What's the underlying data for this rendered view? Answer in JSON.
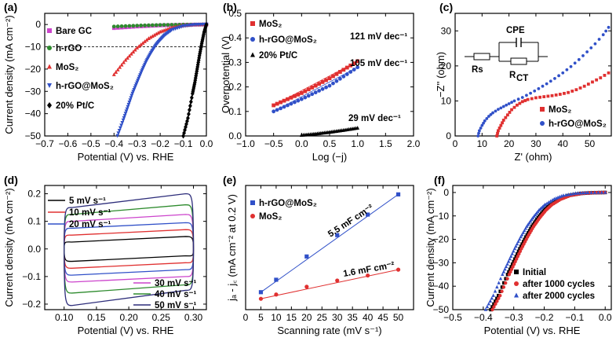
{
  "panel_labels": [
    "(a)",
    "(b)",
    "(c)",
    "(d)",
    "(e)",
    "(f)"
  ],
  "chart_data": [
    {
      "panel": "(a)",
      "type": "line",
      "xlabel": "Potential (V) vs. RHE",
      "ylabel": "Current density (mA cm⁻²)",
      "xlim": [
        -0.7,
        0.0
      ],
      "ylim": [
        -50,
        5
      ],
      "xticks": [
        "-0.7",
        "-0.6",
        "-0.5",
        "-0.4",
        "-0.3",
        "-0.2",
        "-0.1",
        "0.0"
      ],
      "yticks": [
        "-50",
        "-40",
        "-30",
        "-20",
        "-10",
        "0"
      ],
      "reference_line_y": -10,
      "series": [
        {
          "name": "Bare GC",
          "color": "#cc44cc",
          "marker": "square",
          "x": [
            -0.4,
            -0.3,
            -0.2,
            -0.1,
            0.0
          ],
          "y": [
            -1.6,
            -0.9,
            -0.4,
            -0.1,
            0.0
          ]
        },
        {
          "name": "h-rGO",
          "color": "#2e8b2e",
          "marker": "circle",
          "x": [
            -0.4,
            -0.3,
            -0.2,
            -0.1,
            0.0
          ],
          "y": [
            -0.9,
            -0.5,
            -0.2,
            -0.05,
            0.0
          ]
        },
        {
          "name": "MoS₂",
          "color": "#e03030",
          "marker": "triangle",
          "x": [
            -0.4,
            -0.35,
            -0.3,
            -0.25,
            -0.2,
            -0.15,
            -0.1,
            -0.05,
            0.0
          ],
          "y": [
            -22.5,
            -16,
            -10.5,
            -6.3,
            -3.3,
            -1.5,
            -0.5,
            -0.1,
            0.0
          ]
        },
        {
          "name": "h-rGO@MoS₂",
          "color": "#3050c8",
          "marker": "triangle-down",
          "x": [
            -0.385,
            -0.36,
            -0.34,
            -0.32,
            -0.3,
            -0.28,
            -0.26,
            -0.24,
            -0.22,
            -0.2,
            -0.18,
            -0.15,
            -0.1,
            -0.05,
            0.0
          ],
          "y": [
            -50,
            -43,
            -37,
            -31,
            -26,
            -21,
            -16.5,
            -12.8,
            -9.5,
            -7.0,
            -4.8,
            -2.5,
            -0.8,
            -0.2,
            0.0
          ]
        },
        {
          "name": "20% Pt/C",
          "color": "#000000",
          "marker": "diamond",
          "x": [
            -0.1,
            -0.08,
            -0.06,
            -0.05,
            -0.04,
            -0.03,
            -0.02,
            -0.01,
            0.0
          ],
          "y": [
            -50,
            -42,
            -31,
            -26,
            -20,
            -14,
            -8.5,
            -3.5,
            0.0
          ]
        }
      ]
    },
    {
      "panel": "(b)",
      "type": "line",
      "xlabel": "Log (−j)",
      "ylabel": "Overpotential (V)",
      "xlim": [
        -1.0,
        2.0
      ],
      "ylim": [
        0.0,
        0.5
      ],
      "xticks": [
        "-1.0",
        "-0.5",
        "0.0",
        "0.5",
        "1.0",
        "1.5",
        "2.0"
      ],
      "yticks": [
        "0.0",
        "0.1",
        "0.2",
        "0.3",
        "0.4",
        "0.5"
      ],
      "series": [
        {
          "name": "MoS₂",
          "color": "#e03030",
          "marker": "square",
          "x": [
            -0.5,
            0.0,
            0.5,
            1.0
          ],
          "y": [
            0.125,
            0.175,
            0.235,
            0.305
          ]
        },
        {
          "name": "h-rGO@MoS₂",
          "color": "#3050c8",
          "marker": "circle",
          "x": [
            -0.5,
            0.0,
            0.5,
            1.0
          ],
          "y": [
            0.1,
            0.15,
            0.205,
            0.28
          ]
        },
        {
          "name": "20% Pt/C",
          "color": "#000000",
          "marker": "triangle",
          "x": [
            0.0,
            0.25,
            0.5,
            0.75,
            1.0
          ],
          "y": [
            0.003,
            0.008,
            0.015,
            0.023,
            0.032
          ]
        }
      ],
      "annotations": [
        "121 mV dec⁻¹",
        "105 mV dec⁻¹",
        "29 mV dec⁻¹"
      ]
    },
    {
      "panel": "(c)",
      "type": "scatter",
      "xlabel": "Z' (ohm)",
      "ylabel": "−Z'' (ohm)",
      "xlim": [
        0,
        58
      ],
      "ylim": [
        0,
        35
      ],
      "xticks": [
        "0",
        "10",
        "20",
        "30",
        "40",
        "50"
      ],
      "yticks": [
        "0",
        "10",
        "20",
        "30"
      ],
      "series": [
        {
          "name": "MoS₂",
          "color": "#e03030",
          "marker": "square",
          "x": [
            15.5,
            16,
            17,
            18,
            19.5,
            21,
            23,
            25,
            27,
            30,
            33,
            36,
            39,
            42,
            45,
            48,
            51,
            54,
            57
          ],
          "y": [
            0,
            1.5,
            3,
            4.5,
            6,
            7.5,
            8.8,
            9.8,
            10.4,
            10.9,
            11.2,
            11.5,
            11.9,
            12.4,
            13.2,
            14.2,
            15.4,
            16.6,
            18.0
          ]
        },
        {
          "name": "h-rGO@MoS₂",
          "color": "#3050c8",
          "marker": "circle",
          "x": [
            8.5,
            9,
            10,
            11,
            12.5,
            14,
            16,
            18,
            20,
            22,
            25,
            28,
            31,
            34,
            37,
            40,
            43,
            46,
            49,
            52,
            55,
            57
          ],
          "y": [
            0,
            1.5,
            3,
            4.3,
            5.6,
            6.6,
            7.6,
            8.4,
            9.2,
            10.0,
            11.0,
            12.2,
            13.5,
            14.9,
            16.4,
            18.0,
            19.8,
            21.8,
            24.0,
            26.3,
            28.9,
            31.0
          ]
        }
      ],
      "circuit": {
        "cpe": "CPE",
        "rs": "Rs",
        "rct": "R",
        "rct_sub": "CT"
      }
    },
    {
      "panel": "(d)",
      "type": "line",
      "xlabel": "Potential (V) vs. RHE",
      "ylabel": "Current density (mA cm⁻²)",
      "xlim": [
        0.07,
        0.32
      ],
      "ylim": [
        -0.22,
        0.23
      ],
      "xticks": [
        "0.10",
        "0.15",
        "0.20",
        "0.25",
        "0.30"
      ],
      "yticks": [
        "-0.2",
        "-0.1",
        "0.0",
        "0.1",
        "0.2"
      ],
      "series": [
        {
          "name": "5 mV s⁻¹",
          "color": "#000000",
          "top_left": 0.025,
          "top_right": 0.045,
          "bottom_left": -0.045,
          "bottom_right": -0.025
        },
        {
          "name": "10 mV s⁻¹",
          "color": "#e03030",
          "top_left": 0.05,
          "top_right": 0.07,
          "bottom_left": -0.07,
          "bottom_right": -0.05
        },
        {
          "name": "20 mV s⁻¹",
          "color": "#3050c8",
          "top_left": 0.075,
          "top_right": 0.095,
          "bottom_left": -0.095,
          "bottom_right": -0.075
        },
        {
          "name": "30 mV s⁻¹",
          "color": "#cc44cc",
          "top_left": 0.1,
          "top_right": 0.125,
          "bottom_left": -0.12,
          "bottom_right": -0.1
        },
        {
          "name": "40 mV s⁻¹",
          "color": "#2e8b2e",
          "top_left": 0.125,
          "top_right": 0.16,
          "bottom_left": -0.16,
          "bottom_right": -0.13
        },
        {
          "name": "50 mV s⁻¹",
          "color": "#2d2d7a",
          "top_left": 0.15,
          "top_right": 0.2,
          "bottom_left": -0.205,
          "bottom_right": -0.15
        }
      ]
    },
    {
      "panel": "(e)",
      "type": "scatter",
      "xlabel": "Scanning rate (mV s⁻¹)",
      "ylabel": "jₐ - j꜀ (mA cm⁻² at 0.2 V)",
      "xlim": [
        0,
        55
      ],
      "ylim": [
        0.0,
        0.32
      ],
      "xticks": [
        "0",
        "5",
        "10",
        "15",
        "20",
        "25",
        "30",
        "35",
        "40",
        "45",
        "50"
      ],
      "yticks": [],
      "series": [
        {
          "name": "h-rGO@MoS₂",
          "color": "#3050c8",
          "marker": "square",
          "x": [
            5,
            10,
            20,
            30,
            40,
            50
          ],
          "y": [
            0.045,
            0.077,
            0.137,
            0.192,
            0.245,
            0.297
          ]
        },
        {
          "name": "MoS₂",
          "color": "#e03030",
          "marker": "circle",
          "x": [
            5,
            10,
            20,
            30,
            40,
            50
          ],
          "y": [
            0.028,
            0.039,
            0.059,
            0.075,
            0.088,
            0.103
          ]
        }
      ],
      "annotations": [
        "5.5 mF cm⁻²",
        "1.6 mF cm⁻²"
      ]
    },
    {
      "panel": "(f)",
      "type": "line",
      "xlabel": "Potential (V) vs. RHE",
      "ylabel": "Current density (mA cm⁻²)",
      "xlim": [
        -0.5,
        0.02
      ],
      "ylim": [
        -50,
        3
      ],
      "xticks": [
        "-0.5",
        "-0.4",
        "-0.3",
        "-0.2",
        "-0.1",
        "0.0"
      ],
      "yticks": [
        "-50",
        "-40",
        "-30",
        "-20",
        "-10",
        "0"
      ],
      "series": [
        {
          "name": "Initial",
          "color": "#000000",
          "marker": "square",
          "x": [
            -0.375,
            -0.35,
            -0.32,
            -0.3,
            -0.28,
            -0.26,
            -0.24,
            -0.22,
            -0.2,
            -0.18,
            -0.15,
            -0.12,
            -0.08,
            -0.04,
            0.0
          ],
          "y": [
            -50,
            -44,
            -35,
            -29.5,
            -24,
            -19,
            -14.5,
            -10.8,
            -7.6,
            -5.2,
            -2.8,
            -1.3,
            -0.4,
            -0.1,
            0.0
          ]
        },
        {
          "name": "after 1000 cycles",
          "color": "#e03030",
          "marker": "circle",
          "x": [
            -0.37,
            -0.345,
            -0.315,
            -0.295,
            -0.275,
            -0.255,
            -0.235,
            -0.215,
            -0.195,
            -0.175,
            -0.145,
            -0.115,
            -0.075,
            -0.035,
            0.0
          ],
          "y": [
            -50,
            -44,
            -35,
            -29.5,
            -24,
            -19,
            -14.5,
            -10.8,
            -7.6,
            -5.2,
            -2.8,
            -1.3,
            -0.4,
            -0.1,
            0.0
          ]
        },
        {
          "name": "after 2000 cycles",
          "color": "#3050c8",
          "marker": "triangle",
          "x": [
            -0.392,
            -0.367,
            -0.337,
            -0.317,
            -0.297,
            -0.277,
            -0.257,
            -0.237,
            -0.217,
            -0.197,
            -0.167,
            -0.137,
            -0.097,
            -0.057,
            0.0
          ],
          "y": [
            -50,
            -44,
            -35,
            -29.5,
            -24,
            -19,
            -14.5,
            -10.8,
            -7.6,
            -5.2,
            -2.8,
            -1.3,
            -0.4,
            -0.1,
            0.0
          ]
        }
      ]
    }
  ]
}
